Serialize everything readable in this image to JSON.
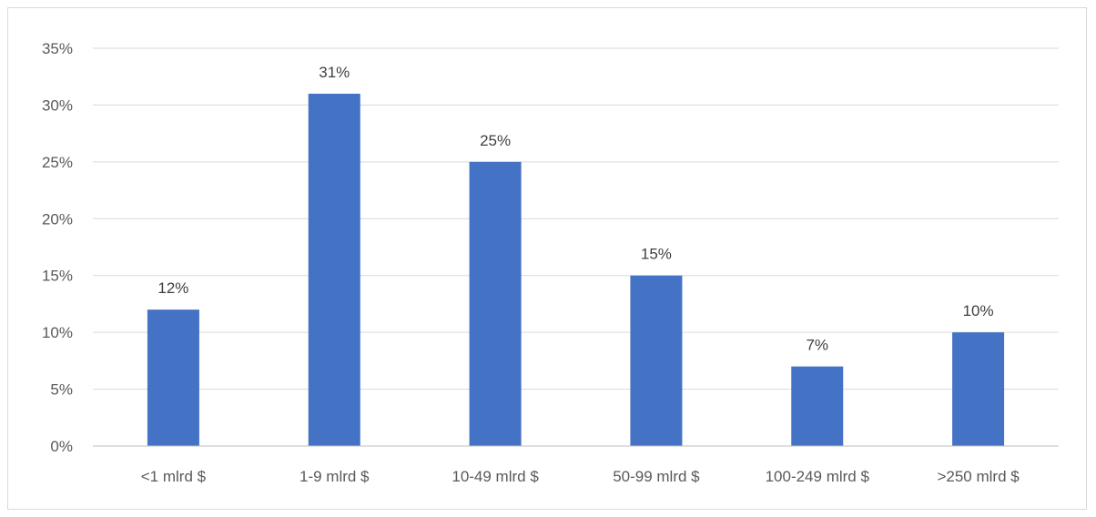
{
  "chart_data": {
    "type": "bar",
    "categories": [
      "<1 mlrd $",
      "1-9 mlrd $",
      "10-49 mlrd $",
      "50-99 mlrd $",
      "100-249 mlrd $",
      ">250 mlrd $"
    ],
    "values": [
      12,
      31,
      25,
      15,
      7,
      10
    ],
    "data_labels": [
      "12%",
      "31%",
      "25%",
      "15%",
      "7%",
      "10%"
    ],
    "y_ticks": [
      "0%",
      "5%",
      "10%",
      "15%",
      "20%",
      "25%",
      "30%",
      "35%"
    ],
    "ylim": [
      0,
      35
    ],
    "grid": true,
    "legend": "none",
    "colors": {
      "bar": "#4472C4",
      "grid": "#d9d9d9"
    }
  }
}
